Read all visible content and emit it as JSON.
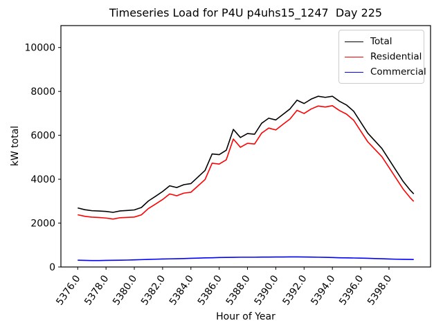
{
  "chart_data": {
    "type": "line",
    "title": "Timeseries Load for P4U p4uhs15_1247  Day 225",
    "xlabel": "Hour of Year",
    "ylabel": "kW total",
    "ylim": [
      0,
      11000
    ],
    "grid": false,
    "legend_position": "upper right",
    "xtick_labels": [
      "5376.0",
      "5378.0",
      "5380.0",
      "5382.0",
      "5384.0",
      "5386.0",
      "5388.0",
      "5390.0",
      "5392.0",
      "5394.0",
      "5396.0",
      "5398.0"
    ],
    "xtick_values": [
      5376,
      5378,
      5380,
      5382,
      5384,
      5386,
      5388,
      5390,
      5392,
      5394,
      5396,
      5398
    ],
    "ytick_labels": [
      "0",
      "2000",
      "4000",
      "6000",
      "8000",
      "10000"
    ],
    "ytick_values": [
      0,
      2000,
      4000,
      6000,
      8000,
      10000
    ],
    "x": [
      5376.0,
      5376.5,
      5377.0,
      5377.5,
      5378.0,
      5378.5,
      5379.0,
      5379.5,
      5380.0,
      5380.5,
      5381.0,
      5381.5,
      5382.0,
      5382.5,
      5383.0,
      5383.5,
      5384.0,
      5384.5,
      5385.0,
      5385.5,
      5386.0,
      5386.5,
      5387.0,
      5387.5,
      5388.0,
      5388.5,
      5389.0,
      5389.5,
      5390.0,
      5390.5,
      5391.0,
      5391.5,
      5392.0,
      5392.5,
      5393.0,
      5393.5,
      5394.0,
      5394.5,
      5395.0,
      5395.5,
      5396.0,
      5396.5,
      5397.0,
      5397.5,
      5398.0,
      5398.5,
      5399.0,
      5399.5,
      5399.75
    ],
    "series": [
      {
        "name": "Total",
        "color": "#000000",
        "values": [
          2690,
          2610,
          2565,
          2550,
          2530,
          2490,
          2555,
          2575,
          2600,
          2710,
          3010,
          3220,
          3440,
          3700,
          3620,
          3750,
          3800,
          4100,
          4400,
          5150,
          5120,
          5320,
          6270,
          5900,
          6080,
          6050,
          6550,
          6780,
          6700,
          6950,
          7200,
          7600,
          7450,
          7650,
          7780,
          7730,
          7780,
          7550,
          7380,
          7100,
          6600,
          6100,
          5750,
          5400,
          4900,
          4400,
          3900,
          3500,
          3330
        ]
      },
      {
        "name": "Residential",
        "color": "#ff0000",
        "values": [
          2380,
          2310,
          2270,
          2255,
          2230,
          2185,
          2245,
          2260,
          2275,
          2375,
          2665,
          2865,
          3075,
          3330,
          3245,
          3365,
          3405,
          3695,
          3985,
          4730,
          4690,
          4885,
          5830,
          5455,
          5635,
          5605,
          6100,
          6330,
          6245,
          6495,
          6740,
          7140,
          6995,
          7200,
          7335,
          7290,
          7350,
          7130,
          6965,
          6690,
          6195,
          5705,
          5365,
          5025,
          4535,
          4045,
          3550,
          3155,
          2990
        ]
      },
      {
        "name": "Commercial",
        "color": "#0000ff",
        "values": [
          310,
          300,
          295,
          295,
          300,
          305,
          310,
          315,
          325,
          335,
          345,
          355,
          365,
          370,
          375,
          385,
          395,
          405,
          415,
          420,
          430,
          435,
          440,
          445,
          445,
          445,
          450,
          450,
          455,
          455,
          460,
          460,
          455,
          450,
          445,
          440,
          430,
          420,
          415,
          410,
          405,
          395,
          385,
          375,
          365,
          355,
          350,
          345,
          340
        ]
      }
    ]
  }
}
